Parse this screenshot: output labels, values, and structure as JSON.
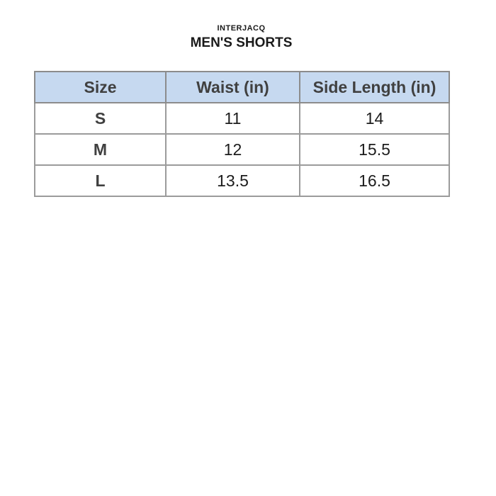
{
  "brand": {
    "name": "INTERJACQ"
  },
  "page_title": "MEN'S SHORTS",
  "size_chart": {
    "columns": [
      "Size",
      "Waist (in)",
      "Side Length (in)"
    ],
    "rows": [
      {
        "size": "S",
        "waist": "11",
        "side_length": "14"
      },
      {
        "size": "M",
        "waist": "12",
        "side_length": "15.5"
      },
      {
        "size": "L",
        "waist": "13.5",
        "side_length": "16.5"
      }
    ]
  },
  "colors": {
    "header_bg": "#c6d9f0",
    "header_text": "#404040",
    "value_text": "#1c1c1c",
    "border": "#9b9b9b",
    "page_bg": "#ffffff"
  },
  "chart_data": {
    "type": "table",
    "title": "MEN'S SHORTS",
    "subtitle": "INTERJACQ",
    "columns": [
      "Size",
      "Waist (in)",
      "Side Length (in)"
    ],
    "rows": [
      [
        "S",
        11,
        14
      ],
      [
        "M",
        12,
        15.5
      ],
      [
        "L",
        13.5,
        16.5
      ]
    ]
  }
}
